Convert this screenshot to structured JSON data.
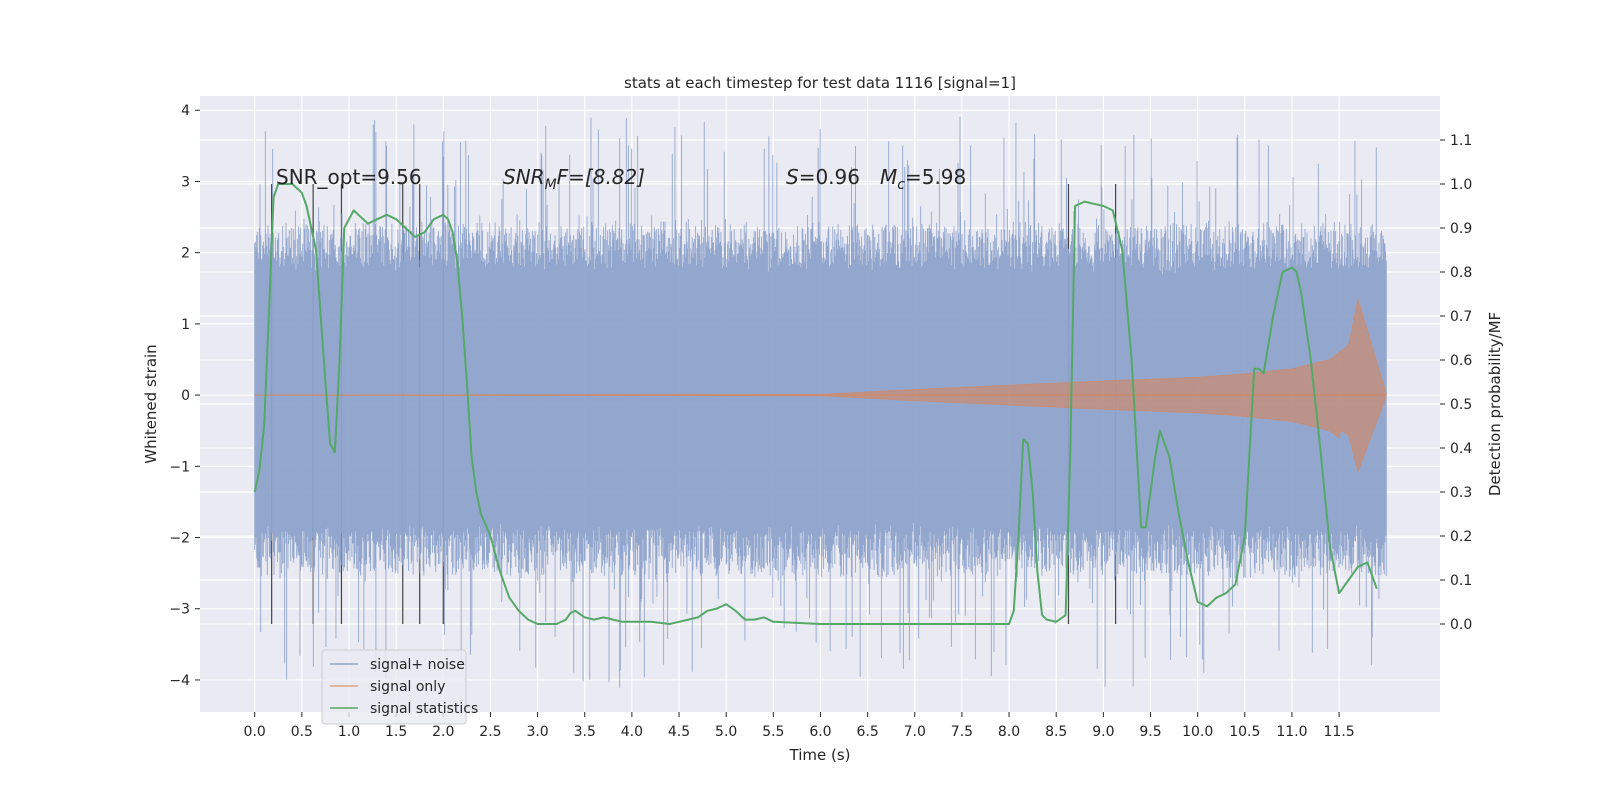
{
  "chart_data": {
    "type": "line",
    "title": "stats at each timestep for test data 1116 [signal=1]",
    "xlabel": "Time (s)",
    "ylabel_left": "Whitened strain",
    "ylabel_right": "Detection probability/MF",
    "xlim": [
      -0.58,
      12.57
    ],
    "ylim_left": [
      -4.45,
      4.2
    ],
    "ylim_right": [
      -0.2,
      1.2
    ],
    "x_ticks": [
      "0.0",
      "0.5",
      "1.0",
      "1.5",
      "2.0",
      "2.5",
      "3.0",
      "3.5",
      "4.0",
      "4.5",
      "5.0",
      "5.5",
      "6.0",
      "6.5",
      "7.0",
      "7.5",
      "8.0",
      "8.5",
      "9.0",
      "9.5",
      "10.0",
      "10.5",
      "11.0",
      "11.5"
    ],
    "y_ticks_left": [
      "4",
      "3",
      "2",
      "1",
      "0",
      "−1",
      "−2",
      "−3",
      "−4"
    ],
    "y_ticks_right": [
      "1.1",
      "1.0",
      "0.9",
      "0.8",
      "0.7",
      "0.6",
      "0.5",
      "0.4",
      "0.3",
      "0.2",
      "0.1",
      "0.0"
    ],
    "grid": true,
    "legend_placement": "lower-left",
    "annotations": {
      "snr_opt": "SNR_opt=9.56",
      "snr_mf_main": "SNR",
      "snr_mf_sub": "M",
      "snr_mf_rest": "F=[8.82]",
      "s_main": "S",
      "s_rest": "=0.96",
      "mc_main": "M",
      "mc_sub": "c",
      "mc_rest": "=5.98"
    },
    "series": [
      {
        "name": "signal+ noise",
        "color": "#8ea3cb",
        "x_range": [
          0.0,
          12.0
        ],
        "envelope": {
          "typical_upper": 2.1,
          "typical_lower": -2.2,
          "peak_upper": 3.9,
          "peak_lower": -4.1
        }
      },
      {
        "name": "signal only",
        "color": "#dd8452",
        "envelope": {
          "x": [
            0.0,
            6.0,
            7.0,
            8.0,
            9.0,
            10.0,
            10.5,
            11.0,
            11.4,
            11.6,
            11.7,
            12.0
          ],
          "amplitude": [
            0.0,
            0.01,
            0.08,
            0.14,
            0.2,
            0.25,
            0.3,
            0.37,
            0.5,
            0.7,
            1.35,
            0.02
          ]
        }
      },
      {
        "name": "signal statistics",
        "color": "#55a868",
        "x": [
          0.0,
          0.05,
          0.1,
          0.15,
          0.2,
          0.25,
          0.3,
          0.4,
          0.5,
          0.55,
          0.6,
          0.65,
          0.7,
          0.75,
          0.8,
          0.85,
          0.9,
          0.95,
          1.0,
          1.05,
          1.1,
          1.2,
          1.3,
          1.4,
          1.5,
          1.6,
          1.7,
          1.8,
          1.9,
          2.0,
          2.05,
          2.1,
          2.15,
          2.2,
          2.25,
          2.3,
          2.35,
          2.4,
          2.5,
          2.6,
          2.7,
          2.8,
          2.9,
          3.0,
          3.1,
          3.2,
          3.3,
          3.35,
          3.4,
          3.5,
          3.6,
          3.7,
          3.8,
          3.9,
          4.0,
          4.2,
          4.4,
          4.5,
          4.6,
          4.7,
          4.8,
          4.9,
          5.0,
          5.1,
          5.2,
          5.3,
          5.4,
          5.5,
          6.0,
          6.5,
          7.0,
          7.5,
          8.0,
          8.05,
          8.1,
          8.15,
          8.2,
          8.25,
          8.3,
          8.35,
          8.4,
          8.5,
          8.6,
          8.65,
          8.7,
          8.8,
          8.9,
          9.0,
          9.1,
          9.2,
          9.3,
          9.4,
          9.45,
          9.5,
          9.55,
          9.6,
          9.7,
          9.8,
          9.9,
          10.0,
          10.1,
          10.2,
          10.3,
          10.4,
          10.5,
          10.6,
          10.65,
          10.7,
          10.8,
          10.9,
          11.0,
          11.05,
          11.1,
          11.2,
          11.3,
          11.4,
          11.5,
          11.6,
          11.7,
          11.8,
          11.9
        ],
        "values": [
          0.3,
          0.35,
          0.45,
          0.7,
          0.97,
          1.0,
          1.0,
          1.0,
          0.98,
          0.95,
          0.9,
          0.85,
          0.7,
          0.55,
          0.41,
          0.39,
          0.6,
          0.9,
          0.92,
          0.94,
          0.93,
          0.91,
          0.92,
          0.93,
          0.92,
          0.9,
          0.88,
          0.89,
          0.92,
          0.93,
          0.92,
          0.89,
          0.82,
          0.7,
          0.55,
          0.38,
          0.3,
          0.25,
          0.2,
          0.12,
          0.06,
          0.03,
          0.01,
          0.0,
          0.0,
          0.0,
          0.01,
          0.025,
          0.03,
          0.015,
          0.01,
          0.015,
          0.01,
          0.005,
          0.005,
          0.005,
          0.0,
          0.005,
          0.01,
          0.015,
          0.03,
          0.035,
          0.045,
          0.03,
          0.01,
          0.01,
          0.015,
          0.005,
          0.0,
          0.0,
          0.0,
          0.0,
          0.0,
          0.03,
          0.2,
          0.42,
          0.41,
          0.3,
          0.12,
          0.02,
          0.01,
          0.005,
          0.02,
          0.4,
          0.95,
          0.96,
          0.955,
          0.95,
          0.94,
          0.85,
          0.6,
          0.22,
          0.22,
          0.3,
          0.38,
          0.44,
          0.38,
          0.25,
          0.14,
          0.05,
          0.04,
          0.06,
          0.07,
          0.09,
          0.2,
          0.58,
          0.58,
          0.57,
          0.7,
          0.8,
          0.81,
          0.8,
          0.75,
          0.6,
          0.4,
          0.18,
          0.07,
          0.1,
          0.13,
          0.14,
          0.08
        ]
      }
    ],
    "vertical_lines": [
      0.18,
      0.62,
      0.92,
      1.57,
      1.75,
      2.0,
      8.63,
      9.13
    ]
  }
}
